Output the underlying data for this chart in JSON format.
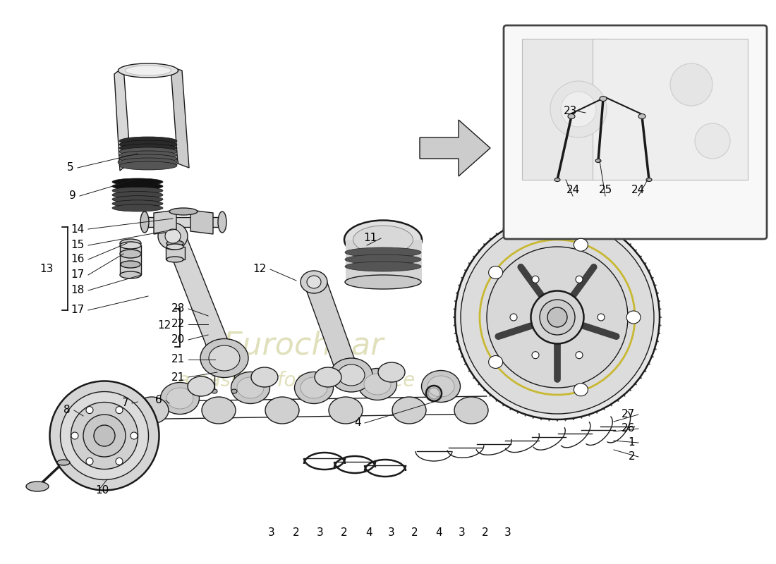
{
  "background_color": "#ffffff",
  "drawing_color": "#1a1a1a",
  "light_fill": "#e8e8e8",
  "medium_fill": "#d0d0d0",
  "dark_fill": "#b0b0b0",
  "watermark_color": "#d4d4a0",
  "inset_border": "#444444",
  "figsize": [
    11.0,
    8.0
  ],
  "dpi": 100,
  "label_fontsize": 11,
  "label_color": "#000000",
  "line_lw": 1.0,
  "thick_lw": 1.8
}
